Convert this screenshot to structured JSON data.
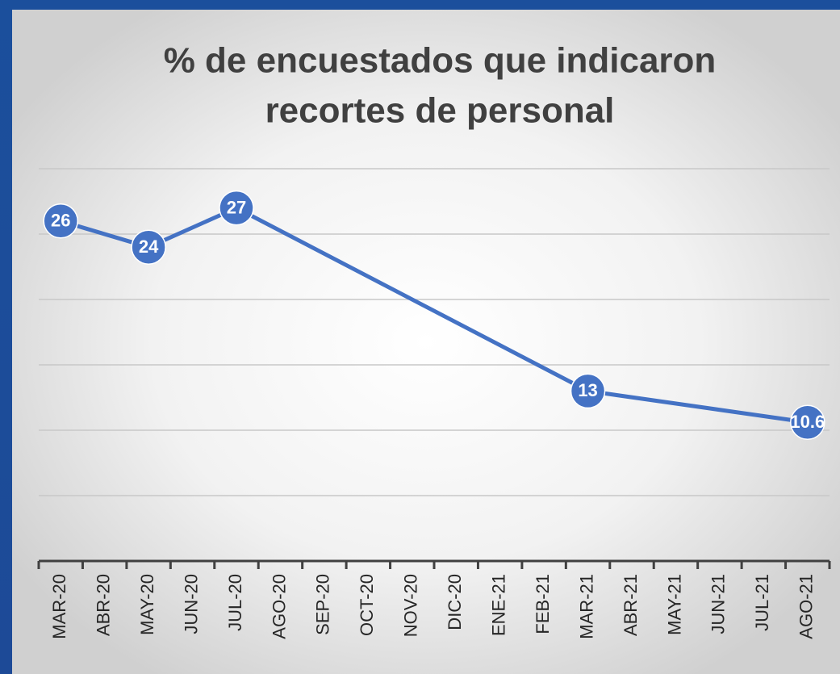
{
  "chart_data": {
    "type": "line",
    "title": [
      "% de encuestados que indicaron",
      "recortes de personal"
    ],
    "categories": [
      "MAR-20",
      "ABR-20",
      "MAY-20",
      "JUN-20",
      "JUL-20",
      "AGO-20",
      "SEP-20",
      "OCT-20",
      "NOV-20",
      "DIC-20",
      "ENE-21",
      "FEB-21",
      "MAR-21",
      "ABR-21",
      "MAY-21",
      "JUN-21",
      "JUL-21",
      "AGO-21"
    ],
    "values": [
      26,
      null,
      24,
      null,
      27,
      null,
      null,
      null,
      null,
      null,
      null,
      null,
      13,
      null,
      null,
      null,
      null,
      10.6
    ],
    "color": "#4472c4",
    "ylim": [
      0,
      30
    ],
    "yticks": [
      0,
      5,
      10,
      15,
      20,
      25,
      30
    ],
    "grid": true
  }
}
